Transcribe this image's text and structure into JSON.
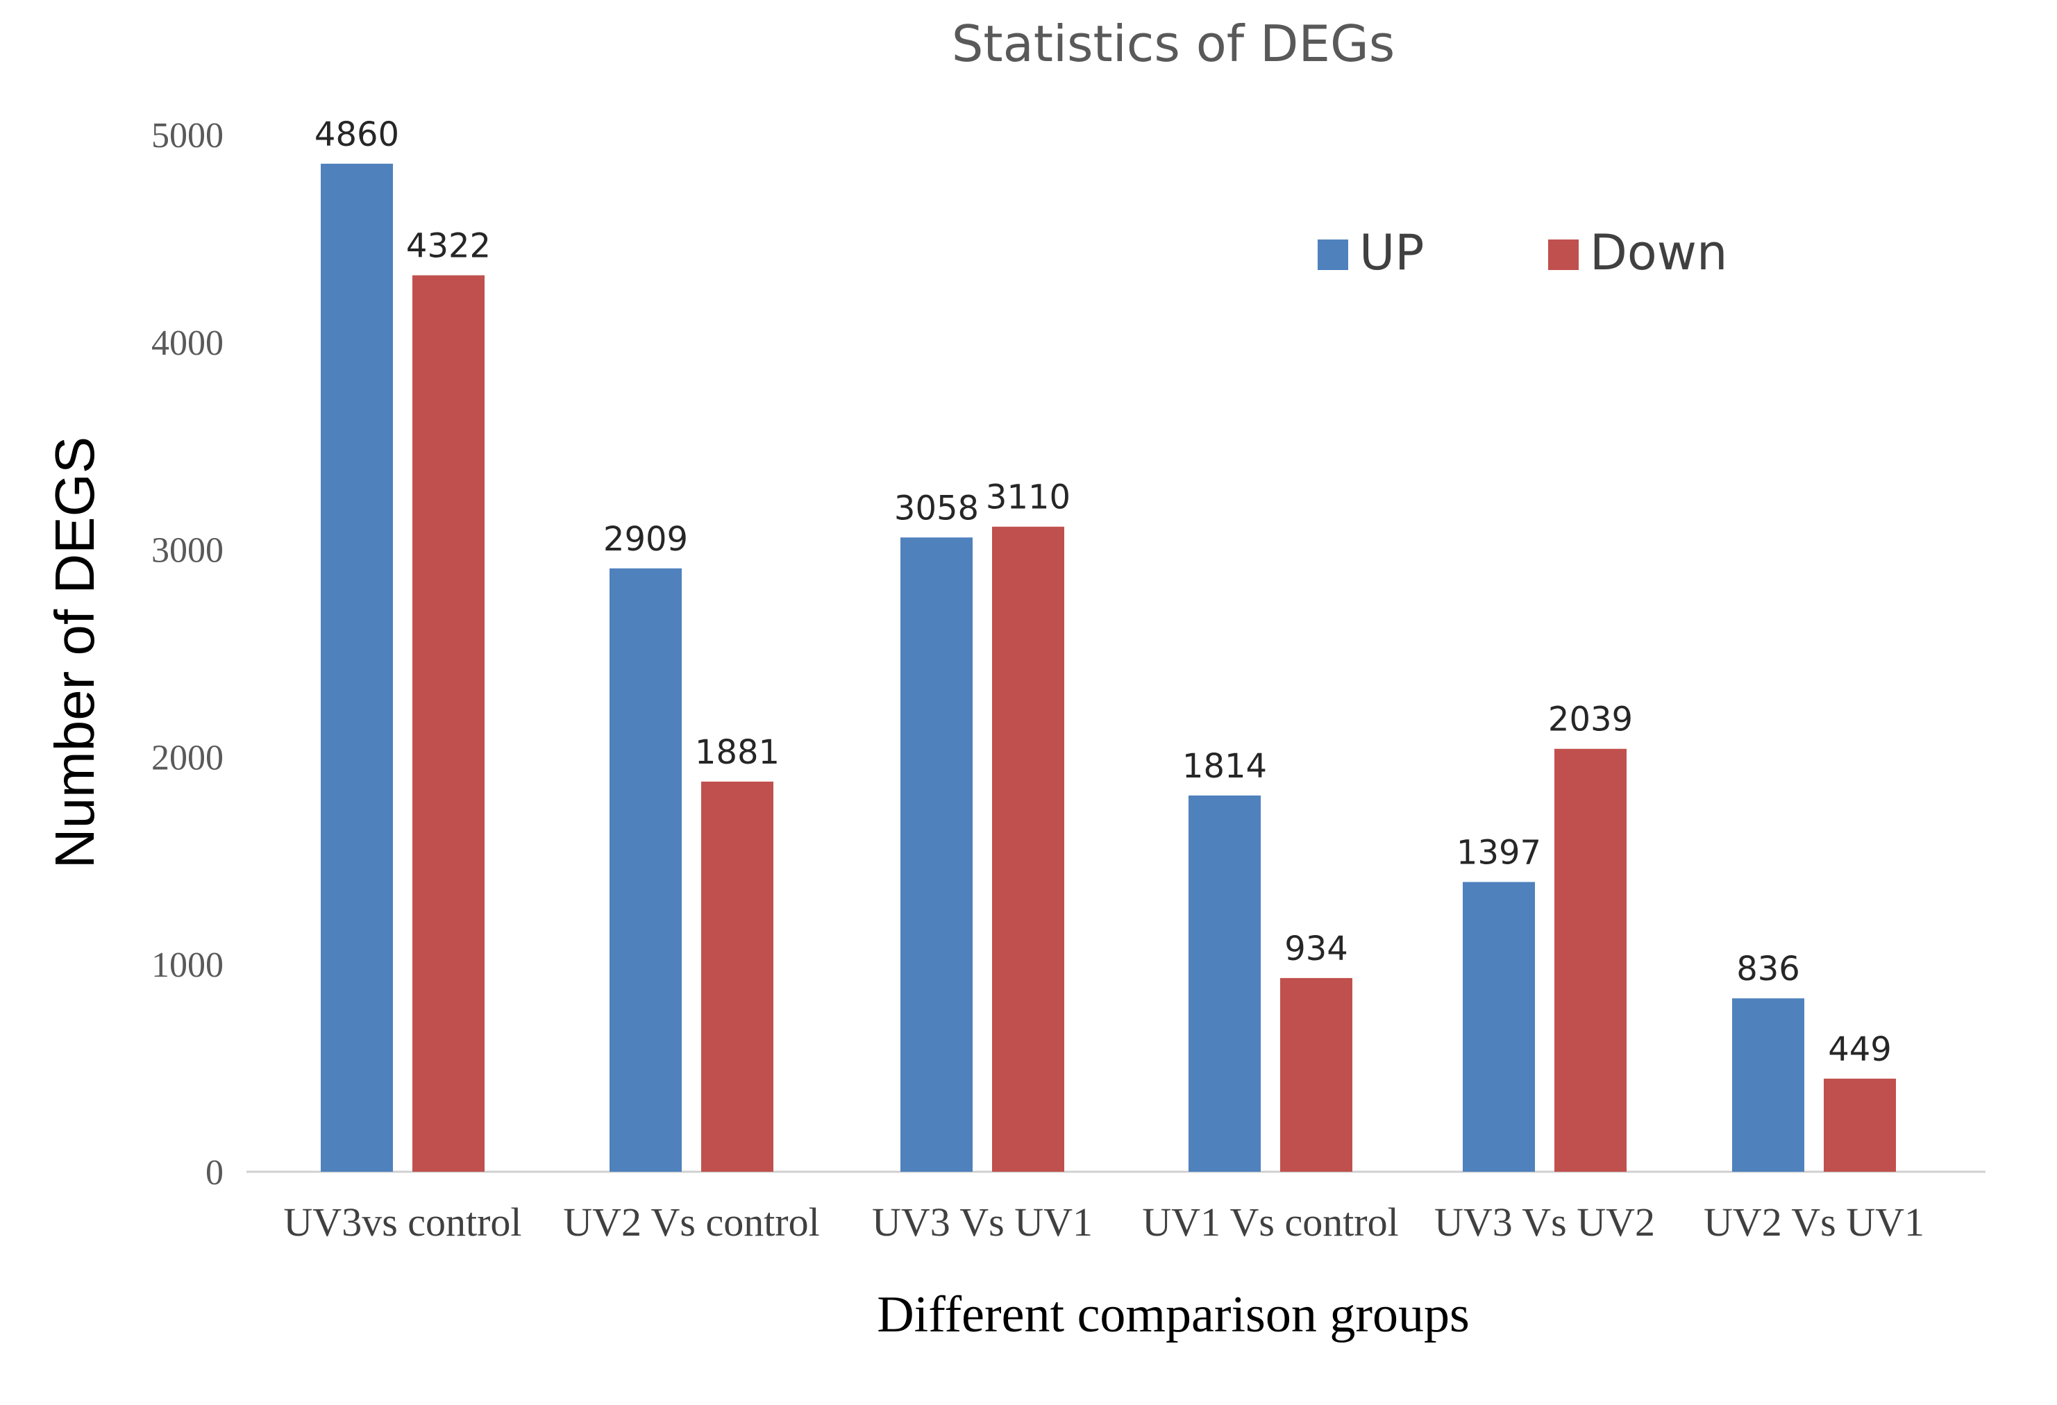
{
  "chart_data": {
    "type": "bar",
    "title": "Statistics of DEGs",
    "xlabel": "Different comparison groups",
    "ylabel": "Number of DEGS",
    "categories": [
      "UV3vs control",
      "UV2 Vs control",
      "UV3 Vs UV1",
      "UV1 Vs control",
      "UV3 Vs UV2",
      "UV2 Vs UV1"
    ],
    "series": [
      {
        "name": "UP",
        "color": "#4F81BD",
        "values": [
          4860,
          2909,
          3058,
          1814,
          1397,
          836
        ]
      },
      {
        "name": "Down",
        "color": "#C0504D",
        "values": [
          4322,
          1881,
          3110,
          934,
          2039,
          449
        ]
      }
    ],
    "ylim": [
      0,
      5000
    ],
    "yticks": [
      "0",
      "1000",
      "2000",
      "3000",
      "4000",
      "5000"
    ],
    "grid": false,
    "legend_position": "top-right"
  }
}
